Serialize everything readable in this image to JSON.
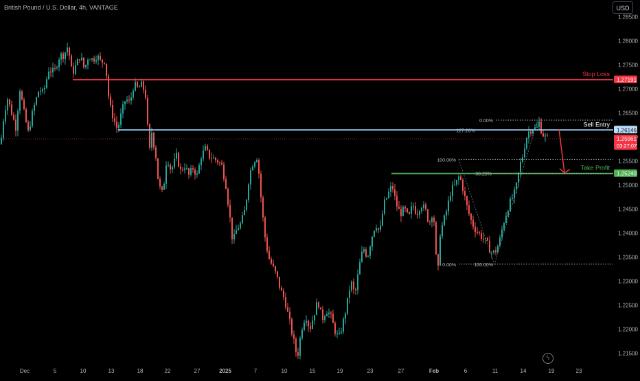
{
  "header": {
    "title": "British Pound / U.S. Dollar, 4h, VANTAGE",
    "currency": "USD"
  },
  "chart_data": {
    "type": "candlestick",
    "symbol": "British Pound / U.S. Dollar",
    "interval": "4h",
    "broker": "VANTAGE",
    "ylim": [
      1.2125,
      1.2885
    ],
    "y_ticks": [
      "1.28500",
      "1.28000",
      "1.27500",
      "1.27000",
      "1.26500",
      "1.26000",
      "1.25500",
      "1.25000",
      "1.24500",
      "1.24000",
      "1.23500",
      "1.23000",
      "1.22500",
      "1.22000",
      "1.21500"
    ],
    "x_ticks": [
      "Dec",
      "5",
      "10",
      "13",
      "18",
      "22",
      "27",
      "2025",
      "7",
      "10",
      "15",
      "19",
      "23",
      "27",
      "Feb",
      "6",
      "11",
      "14",
      "19",
      "23"
    ],
    "x_ticks_bold": [
      "2025",
      "Feb"
    ],
    "price_path": [
      [
        0,
        1.2585
      ],
      [
        5,
        1.265
      ],
      [
        10,
        1.268
      ],
      [
        16,
        1.265
      ],
      [
        22,
        1.262
      ],
      [
        28,
        1.27
      ],
      [
        34,
        1.265
      ],
      [
        40,
        1.261
      ],
      [
        48,
        1.266
      ],
      [
        56,
        1.27
      ],
      [
        62,
        1.269
      ],
      [
        70,
        1.274
      ],
      [
        78,
        1.2735
      ],
      [
        86,
        1.277
      ],
      [
        92,
        1.277
      ],
      [
        98,
        1.279
      ],
      [
        104,
        1.273
      ],
      [
        110,
        1.275
      ],
      [
        116,
        1.277
      ],
      [
        122,
        1.274
      ],
      [
        128,
        1.277
      ],
      [
        134,
        1.276
      ],
      [
        140,
        1.277
      ],
      [
        146,
        1.2755
      ],
      [
        152,
        1.276
      ],
      [
        158,
        1.267
      ],
      [
        164,
        1.264
      ],
      [
        170,
        1.2615
      ],
      [
        176,
        1.265
      ],
      [
        182,
        1.268
      ],
      [
        188,
        1.267
      ],
      [
        194,
        1.271
      ],
      [
        200,
        1.27
      ],
      [
        206,
        1.271
      ],
      [
        212,
        1.268
      ],
      [
        216,
        1.256
      ],
      [
        220,
        1.261
      ],
      [
        226,
        1.256
      ],
      [
        230,
        1.25
      ],
      [
        236,
        1.248
      ],
      [
        242,
        1.256
      ],
      [
        248,
        1.253
      ],
      [
        256,
        1.256
      ],
      [
        262,
        1.253
      ],
      [
        268,
        1.254
      ],
      [
        274,
        1.252
      ],
      [
        280,
        1.2535
      ],
      [
        286,
        1.252
      ],
      [
        292,
        1.256
      ],
      [
        298,
        1.2575
      ],
      [
        304,
        1.256
      ],
      [
        310,
        1.2555
      ],
      [
        316,
        1.255
      ],
      [
        322,
        1.254
      ],
      [
        328,
        1.25
      ],
      [
        334,
        1.243
      ],
      [
        338,
        1.238
      ],
      [
        344,
        1.241
      ],
      [
        350,
        1.242
      ],
      [
        356,
        1.245
      ],
      [
        362,
        1.252
      ],
      [
        368,
        1.255
      ],
      [
        374,
        1.256
      ],
      [
        378,
        1.249
      ],
      [
        384,
        1.24
      ],
      [
        390,
        1.235
      ],
      [
        396,
        1.233
      ],
      [
        402,
        1.231
      ],
      [
        408,
        1.228
      ],
      [
        414,
        1.226
      ],
      [
        420,
        1.222
      ],
      [
        426,
        1.218
      ],
      [
        432,
        1.214
      ],
      [
        438,
        1.22
      ],
      [
        444,
        1.223
      ],
      [
        450,
        1.22
      ],
      [
        456,
        1.223
      ],
      [
        462,
        1.226
      ],
      [
        468,
        1.222
      ],
      [
        474,
        1.224
      ],
      [
        480,
        1.223
      ],
      [
        486,
        1.22
      ],
      [
        492,
        1.218
      ],
      [
        498,
        1.221
      ],
      [
        504,
        1.225
      ],
      [
        510,
        1.23
      ],
      [
        516,
        1.227
      ],
      [
        522,
        1.233
      ],
      [
        528,
        1.237
      ],
      [
        534,
        1.235
      ],
      [
        540,
        1.239
      ],
      [
        546,
        1.242
      ],
      [
        552,
        1.24
      ],
      [
        558,
        1.246
      ],
      [
        564,
        1.248
      ],
      [
        570,
        1.25
      ],
      [
        576,
        1.246
      ],
      [
        582,
        1.244
      ],
      [
        588,
        1.245
      ],
      [
        594,
        1.243
      ],
      [
        600,
        1.246
      ],
      [
        606,
        1.244
      ],
      [
        612,
        1.246
      ],
      [
        618,
        1.245
      ],
      [
        624,
        1.242
      ],
      [
        630,
        1.245
      ],
      [
        636,
        1.23
      ],
      [
        640,
        1.24
      ],
      [
        644,
        1.242
      ],
      [
        650,
        1.245
      ],
      [
        656,
        1.249
      ],
      [
        662,
        1.25
      ],
      [
        668,
        1.252
      ],
      [
        672,
        1.25
      ],
      [
        678,
        1.246
      ],
      [
        684,
        1.243
      ],
      [
        690,
        1.241
      ],
      [
        696,
        1.24
      ],
      [
        702,
        1.239
      ],
      [
        708,
        1.238
      ],
      [
        714,
        1.236
      ],
      [
        720,
        1.236
      ],
      [
        726,
        1.238
      ],
      [
        732,
        1.242
      ],
      [
        738,
        1.245
      ],
      [
        744,
        1.247
      ],
      [
        750,
        1.249
      ],
      [
        756,
        1.254
      ],
      [
        760,
        1.256
      ],
      [
        764,
        1.259
      ],
      [
        768,
        1.261
      ],
      [
        772,
        1.2615
      ],
      [
        776,
        1.262
      ],
      [
        780,
        1.2615
      ],
      [
        784,
        1.263
      ],
      [
        788,
        1.261
      ],
      [
        792,
        1.26
      ],
      [
        796,
        1.2596
      ]
    ],
    "last_price": "1.25961",
    "countdown": "03:27:07",
    "levels": [
      {
        "name": "Stop Loss",
        "value": 1.27191,
        "label": "1.27191",
        "color": "#f23645"
      },
      {
        "name": "Sell Entry",
        "value": 1.26146,
        "label": "1.26146",
        "color": "#90caf9"
      },
      {
        "name": "Take Profit",
        "value": 1.2524,
        "label": "1.25240",
        "color": "#4caf50"
      }
    ],
    "fib_upper": {
      "levels": [
        {
          "label": "0.00%",
          "value": 1.2635
        },
        {
          "label": "127.20%",
          "value": 1.26146
        },
        {
          "label": "100.00%",
          "value": 1.2553
        },
        {
          "label": "38.20%",
          "value": 1.2524
        }
      ]
    },
    "fib_lower": {
      "levels": [
        {
          "label": "0.00%",
          "value": 1.23353
        },
        {
          "label": "100.00%",
          "value": 1.23353
        }
      ]
    },
    "annotations": {
      "stop_loss": "Stop Loss",
      "sell_entry": "Sell Entry",
      "take_profit": "Take Profit"
    },
    "colors": {
      "up": "#26a69a",
      "down": "#ef5350",
      "axis_text": "#b2b5be",
      "dotted": "#b2b5be",
      "arrow": "#f23645"
    },
    "grid": false
  }
}
